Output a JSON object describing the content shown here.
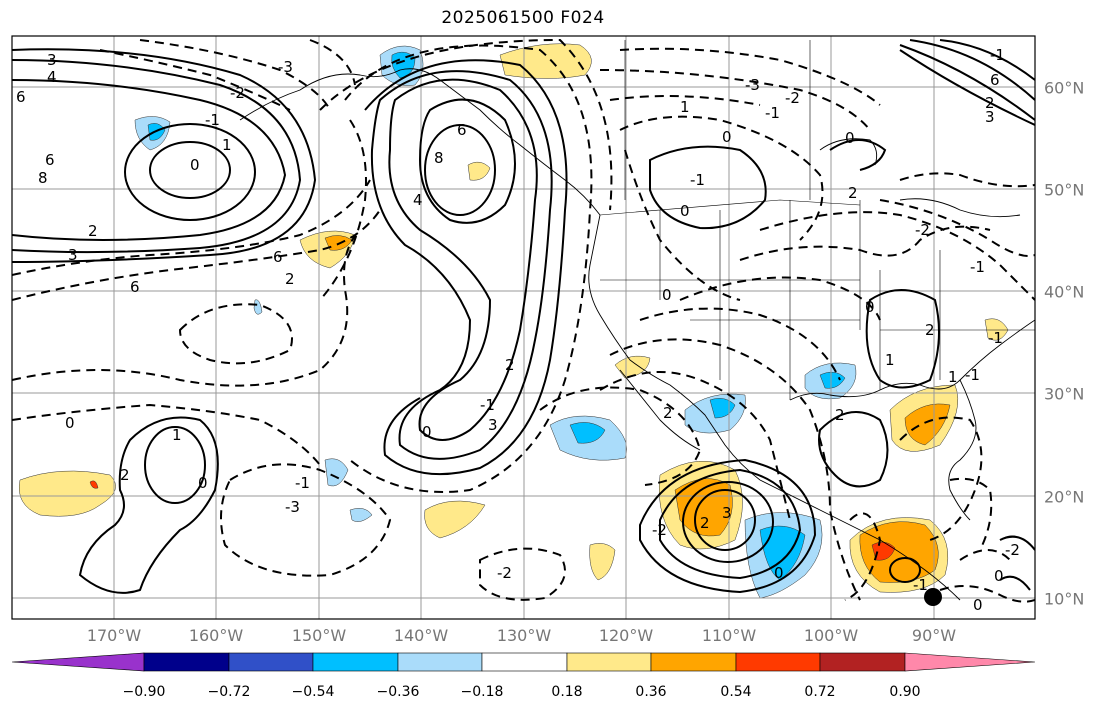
{
  "title": "2025061500 F024",
  "lon_labels": [
    "170°W",
    "160°W",
    "150°W",
    "140°W",
    "130°W",
    "120°W",
    "110°W",
    "100°W",
    "90°W"
  ],
  "lat_labels": [
    "60°N",
    "50°N",
    "40°N",
    "30°N",
    "20°N",
    "10°N"
  ],
  "colorbar": {
    "tick_labels": [
      "−0.90",
      "−0.72",
      "−0.54",
      "−0.36",
      "−0.18",
      "0.18",
      "0.36",
      "0.54",
      "0.72",
      "0.90"
    ],
    "colors": [
      "#9932cc",
      "#00008b",
      "#3050c8",
      "#00bfff",
      "#aadcfa",
      "#ffffff",
      "#ffe98a",
      "#ffa500",
      "#ff3a00",
      "#b22222",
      "#ff88aa"
    ]
  },
  "contour_labels": [
    "3",
    "4",
    "6",
    "-3",
    "-2",
    "-1",
    "0",
    "1",
    "2",
    "3",
    "6",
    "8",
    "6",
    "2",
    "6",
    "0",
    "1",
    "2",
    "0",
    "-3",
    "-1",
    "-4",
    "-1",
    "0",
    "2",
    "8",
    "6",
    "4",
    "2",
    "-1",
    "0",
    "1",
    "2",
    "-1",
    "-2",
    "-3",
    "-2",
    "-1",
    "0",
    "-1",
    "0",
    "2",
    "3",
    "0",
    "-2",
    "-1",
    "0",
    "1",
    "0",
    "0",
    "-2",
    "2",
    "2",
    "-1",
    "0",
    "2",
    "3",
    "0",
    "-1",
    "0",
    "-2",
    "-1",
    "1",
    "-1",
    "0"
  ],
  "marker": "station-dot"
}
